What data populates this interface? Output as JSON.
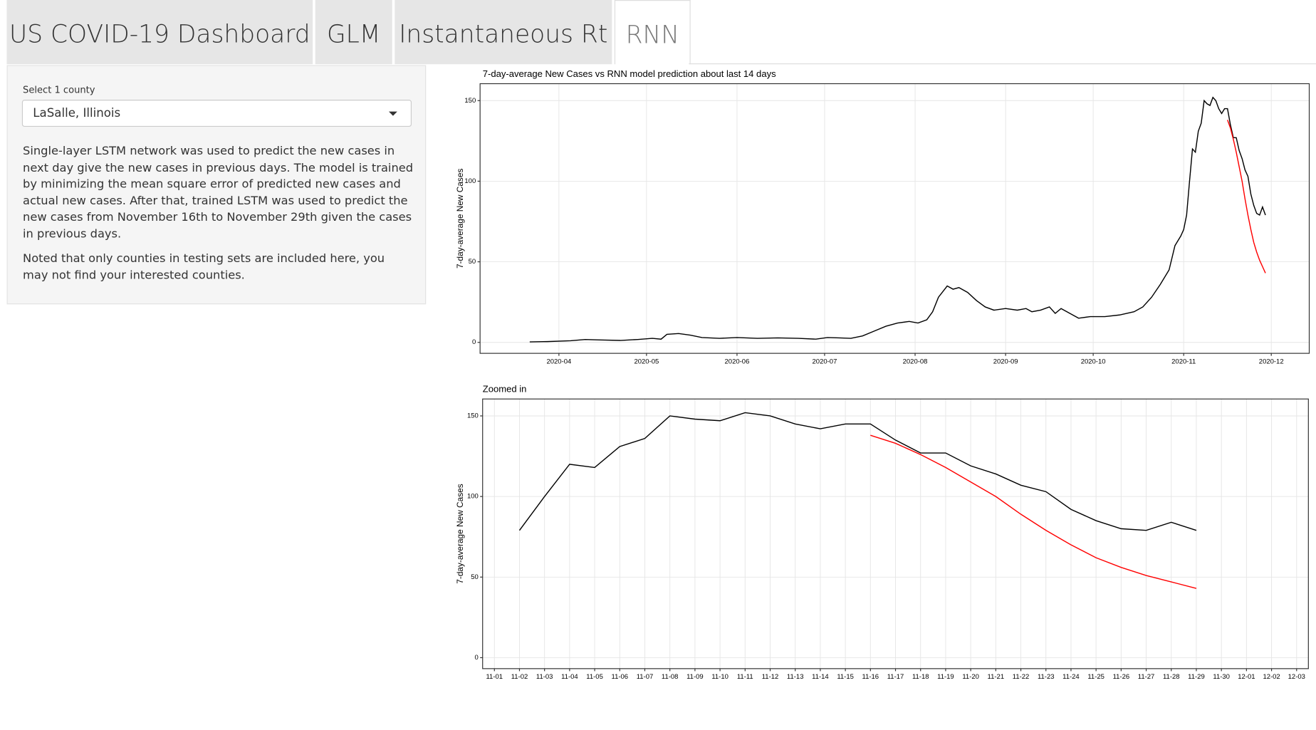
{
  "nav": {
    "tabs": [
      "US COVID-19 Dashboard",
      "GLM",
      "Instantaneous Rt",
      "RNN"
    ]
  },
  "sidebar": {
    "label": "Select 1 county",
    "select_value": "LaSalle, Illinois",
    "paragraphs": [
      "Single-layer LSTM network was used to predict the new cases in next day give the new cases in previous days. The model is trained by minimizing the mean square error of predicted new cases and actual new cases. After that, trained LSTM was used to predict the new cases from November 16th to November 29th given the cases in previous days.",
      "Noted that only counties in testing sets are included here, you may not find your interested counties."
    ]
  },
  "chart_data": [
    {
      "type": "line",
      "title": "7-day-average New Cases vs RNN model prediction about last 14 days",
      "y_label": "7-day-average New Cases",
      "xlim": [
        "2020-03-05",
        "2020-12-14"
      ],
      "xticks": [
        "2020-04",
        "2020-05",
        "2020-06",
        "2020-07",
        "2020-08",
        "2020-09",
        "2020-10",
        "2020-11",
        "2020-12"
      ],
      "ylim": [
        -6.8,
        160.5
      ],
      "yticks": [
        0,
        50,
        100,
        150
      ],
      "grid": true,
      "series": [
        {
          "color": "#000000",
          "x": [
            "2020-03-22",
            "2020-03-28",
            "2020-04-05",
            "2020-04-10",
            "2020-04-15",
            "2020-04-22",
            "2020-04-28",
            "2020-05-03",
            "2020-05-06",
            "2020-05-08",
            "2020-05-12",
            "2020-05-16",
            "2020-05-20",
            "2020-05-26",
            "2020-06-01",
            "2020-06-08",
            "2020-06-15",
            "2020-06-22",
            "2020-06-28",
            "2020-07-02",
            "2020-07-06",
            "2020-07-10",
            "2020-07-14",
            "2020-07-18",
            "2020-07-22",
            "2020-07-26",
            "2020-07-30",
            "2020-08-02",
            "2020-08-05",
            "2020-08-07",
            "2020-08-09",
            "2020-08-12",
            "2020-08-14",
            "2020-08-16",
            "2020-08-19",
            "2020-08-22",
            "2020-08-25",
            "2020-08-28",
            "2020-09-01",
            "2020-09-05",
            "2020-09-08",
            "2020-09-10",
            "2020-09-13",
            "2020-09-16",
            "2020-09-18",
            "2020-09-20",
            "2020-09-23",
            "2020-09-26",
            "2020-09-30",
            "2020-10-05",
            "2020-10-10",
            "2020-10-15",
            "2020-10-18",
            "2020-10-21",
            "2020-10-24",
            "2020-10-27",
            "2020-10-29",
            "2020-10-31",
            "2020-11-01",
            "2020-11-02",
            "2020-11-03",
            "2020-11-04",
            "2020-11-05",
            "2020-11-06",
            "2020-11-07",
            "2020-11-08",
            "2020-11-09",
            "2020-11-10",
            "2020-11-11",
            "2020-11-12",
            "2020-11-13",
            "2020-11-14",
            "2020-11-15",
            "2020-11-16",
            "2020-11-17",
            "2020-11-18",
            "2020-11-19",
            "2020-11-20",
            "2020-11-21",
            "2020-11-22",
            "2020-11-23",
            "2020-11-24",
            "2020-11-25",
            "2020-11-26",
            "2020-11-27",
            "2020-11-28",
            "2020-11-29"
          ],
          "values": [
            0.3,
            0.5,
            1,
            1.8,
            1.5,
            1.2,
            1.8,
            2.5,
            2,
            5,
            5.5,
            4.5,
            3,
            2.5,
            3,
            2.5,
            2.8,
            2.5,
            2,
            3,
            2.8,
            2.5,
            4,
            7,
            10,
            12,
            13,
            12,
            14,
            19,
            28,
            35,
            33,
            34,
            31,
            26,
            22,
            20,
            21,
            20,
            21,
            19,
            20,
            22,
            18,
            21,
            18,
            15,
            16,
            16,
            17,
            19,
            22,
            28,
            36,
            45,
            60,
            66,
            70,
            79,
            100,
            120,
            118,
            131,
            136,
            150,
            148,
            147,
            152,
            150,
            145,
            142,
            145,
            145,
            135,
            127,
            127,
            119,
            114,
            107,
            103,
            92,
            85,
            80,
            79,
            84,
            79
          ]
        },
        {
          "color": "#ff0000",
          "x": [
            "2020-11-16",
            "2020-11-17",
            "2020-11-18",
            "2020-11-19",
            "2020-11-20",
            "2020-11-21",
            "2020-11-22",
            "2020-11-23",
            "2020-11-24",
            "2020-11-25",
            "2020-11-26",
            "2020-11-27",
            "2020-11-28",
            "2020-11-29"
          ],
          "values": [
            138,
            133,
            126,
            118,
            109,
            100,
            89,
            79,
            70,
            62,
            56,
            51,
            47,
            43
          ]
        }
      ]
    },
    {
      "type": "line",
      "title": "Zoomed in",
      "y_label": "7-day-average New Cases",
      "xlim": [
        "11-01",
        "12-03"
      ],
      "xticks": [
        "11-01",
        "11-02",
        "11-03",
        "11-04",
        "11-05",
        "11-06",
        "11-07",
        "11-08",
        "11-09",
        "11-10",
        "11-11",
        "11-12",
        "11-13",
        "11-14",
        "11-15",
        "11-16",
        "11-17",
        "11-18",
        "11-19",
        "11-20",
        "11-21",
        "11-22",
        "11-23",
        "11-24",
        "11-25",
        "11-26",
        "11-27",
        "11-28",
        "11-29",
        "11-30",
        "12-01",
        "12-02",
        "12-03"
      ],
      "ylim": [
        -6.8,
        160.5
      ],
      "yticks": [
        0,
        50,
        100,
        150
      ],
      "grid": true,
      "series": [
        {
          "color": "#000000",
          "x": [
            "11-02",
            "11-03",
            "11-04",
            "11-05",
            "11-06",
            "11-07",
            "11-08",
            "11-09",
            "11-10",
            "11-11",
            "11-12",
            "11-13",
            "11-14",
            "11-15",
            "11-16",
            "11-17",
            "11-18",
            "11-19",
            "11-20",
            "11-21",
            "11-22",
            "11-23",
            "11-24",
            "11-25",
            "11-26",
            "11-27",
            "11-28",
            "11-29"
          ],
          "values": [
            79,
            100,
            120,
            118,
            131,
            136,
            150,
            148,
            147,
            152,
            150,
            145,
            142,
            145,
            145,
            135,
            127,
            127,
            119,
            114,
            107,
            103,
            92,
            85,
            80,
            79,
            84,
            79
          ]
        },
        {
          "color": "#ff0000",
          "x": [
            "11-16",
            "11-17",
            "11-18",
            "11-19",
            "11-20",
            "11-21",
            "11-22",
            "11-23",
            "11-24",
            "11-25",
            "11-26",
            "11-27",
            "11-28",
            "11-29"
          ],
          "values": [
            138,
            133,
            126,
            118,
            109,
            100,
            89,
            79,
            70,
            62,
            56,
            51,
            47,
            43
          ]
        }
      ]
    }
  ]
}
